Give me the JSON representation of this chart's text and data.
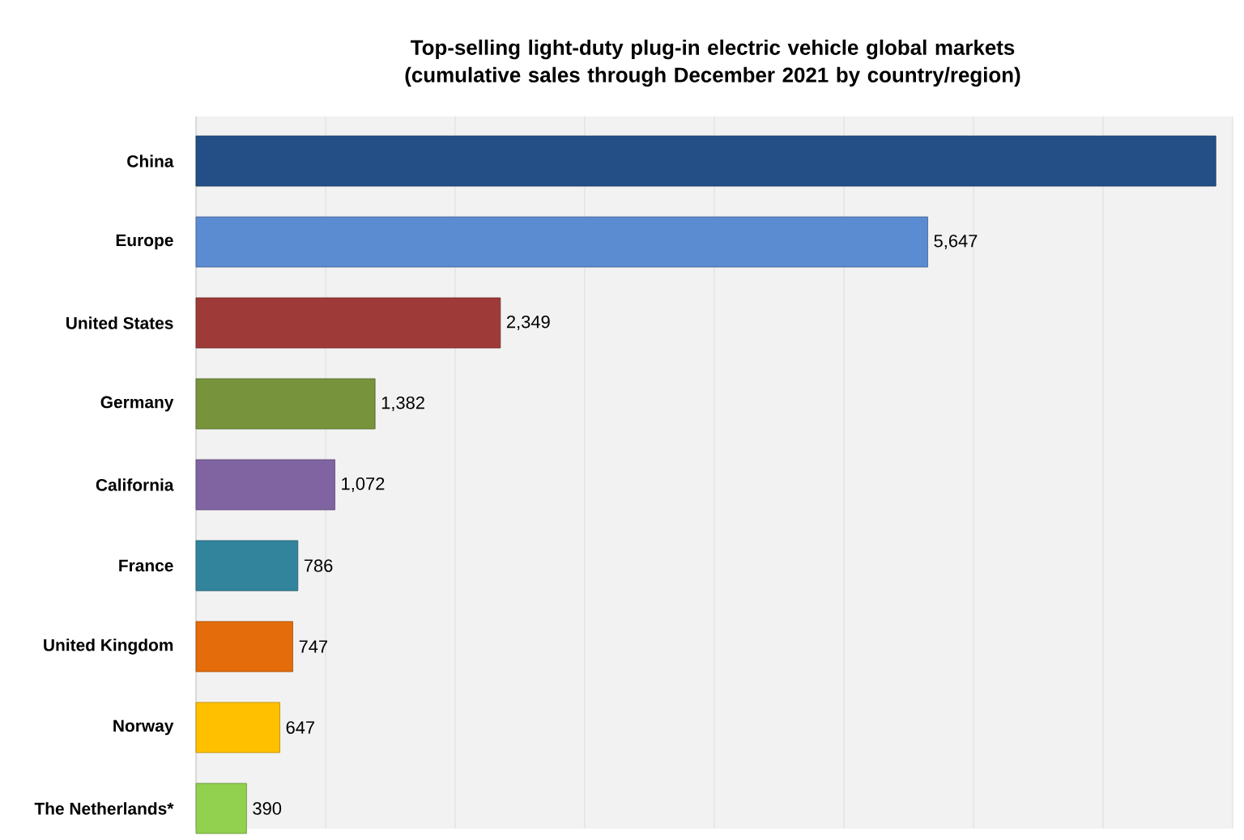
{
  "chart_data": {
    "type": "bar",
    "orientation": "horizontal",
    "title": "Top-selling light-duty plug-in electric vehicle global markets\n(cumulative sales through December 2021 by country/region)",
    "categories": [
      "China",
      "Europe",
      "United States",
      "Germany",
      "California",
      "France",
      "United Kingdom",
      "Norway",
      "The Netherlands*"
    ],
    "values": [
      7870,
      5647,
      2349,
      1382,
      1072,
      786,
      747,
      647,
      390
    ],
    "value_labels": [
      null,
      "5,647",
      "2,349",
      "1,382",
      "1,072",
      "786",
      "747",
      "647",
      "390"
    ],
    "colors": [
      "#244f86",
      "#5b8bd0",
      "#9e3a38",
      "#77933c",
      "#8064a2",
      "#31849b",
      "#e46c0a",
      "#ffc000",
      "#92d050"
    ],
    "xlim": [
      0,
      8000
    ],
    "xticks": [
      {
        "value": 0,
        "label": null
      },
      {
        "value": 1000,
        "label": null
      },
      {
        "value": 2000,
        "label": null
      },
      {
        "value": 3000,
        "label": null
      },
      {
        "value": 4000,
        "label": null
      },
      {
        "value": 5000,
        "label": null
      },
      {
        "value": 6000,
        "label": null
      },
      {
        "value": 7000,
        "label": null
      },
      {
        "value": 8000,
        "label": null
      }
    ],
    "grid": "x"
  }
}
